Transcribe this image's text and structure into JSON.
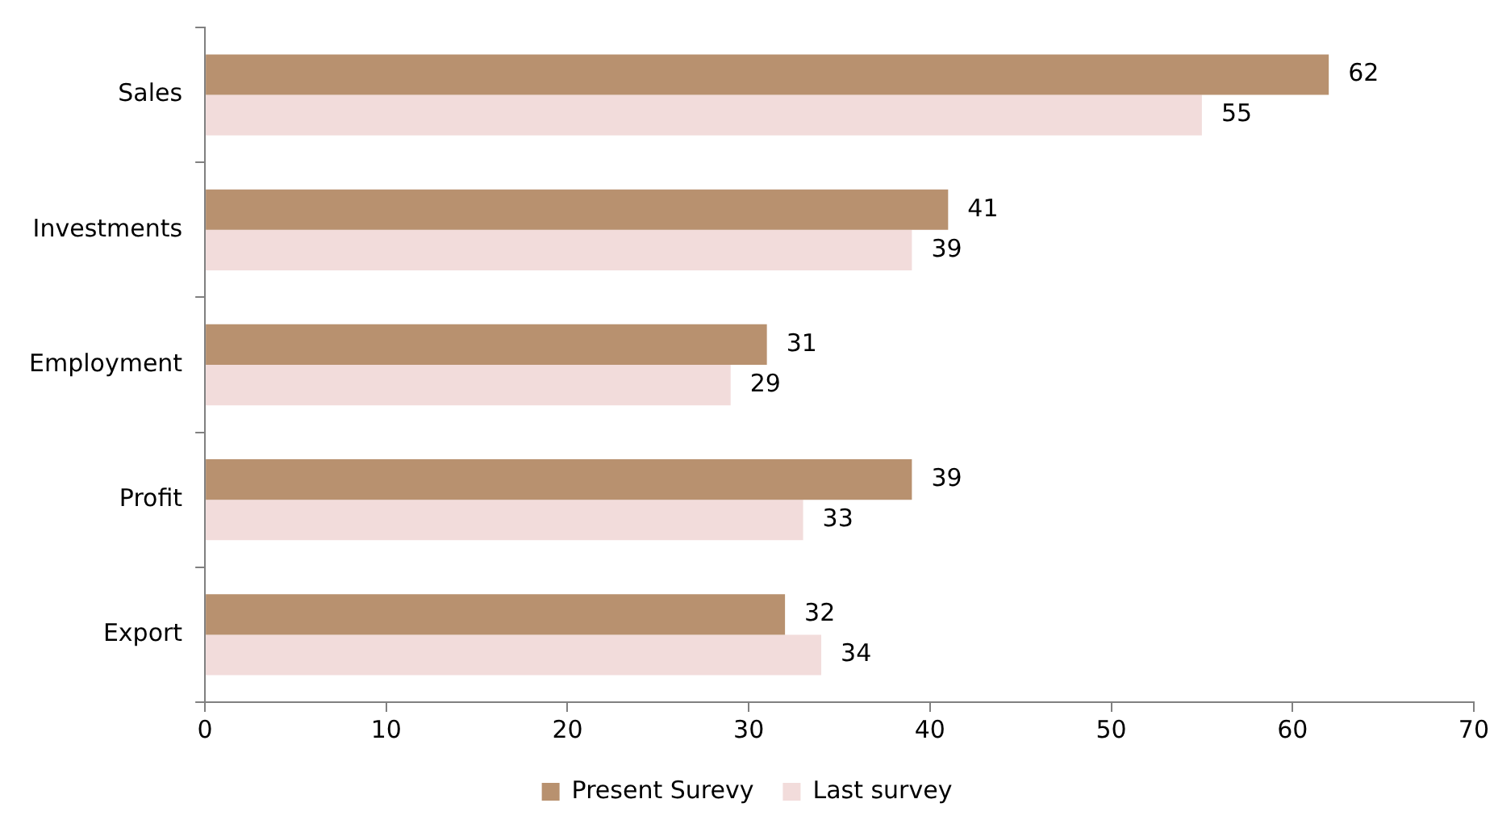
{
  "chart_data": {
    "type": "bar",
    "orientation": "horizontal",
    "categories": [
      "Sales",
      "Investments",
      "Employment",
      "Profit",
      "Export"
    ],
    "series": [
      {
        "name": "Present Surevy",
        "color": "#b8916f",
        "values": [
          62,
          41,
          31,
          39,
          32
        ]
      },
      {
        "name": "Last survey",
        "color": "#f2dcdb",
        "values": [
          55,
          39,
          29,
          33,
          34
        ]
      }
    ],
    "xlim": [
      0,
      70
    ],
    "xticks": [
      0,
      10,
      20,
      30,
      40,
      50,
      60,
      70
    ],
    "grid": false,
    "legend": "bottom",
    "data_labels": true
  }
}
